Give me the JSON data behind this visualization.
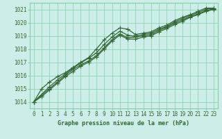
{
  "xlabel": "Graphe pression niveau de la mer (hPa)",
  "bg_color": "#cceee8",
  "plot_bg_color": "#cceee8",
  "grid_color": "#88ccaa",
  "line_color": "#336633",
  "marker_color": "#336633",
  "ylim": [
    1013.5,
    1021.5
  ],
  "xlim": [
    -0.5,
    23.5
  ],
  "yticks": [
    1014,
    1015,
    1016,
    1017,
    1018,
    1019,
    1020,
    1021
  ],
  "xticks": [
    0,
    1,
    2,
    3,
    4,
    5,
    6,
    7,
    8,
    9,
    10,
    11,
    12,
    13,
    14,
    15,
    16,
    17,
    18,
    19,
    20,
    21,
    22,
    23
  ],
  "line1_x": [
    0,
    1,
    2,
    3,
    4,
    5,
    6,
    7,
    8,
    9,
    10,
    11,
    12,
    13,
    14,
    15,
    16,
    17,
    18,
    19,
    20,
    21,
    22,
    23
  ],
  "line1_y": [
    1014.0,
    1015.0,
    1015.5,
    1015.9,
    1016.2,
    1016.6,
    1017.0,
    1017.35,
    1018.0,
    1018.7,
    1019.2,
    1019.6,
    1019.5,
    1019.1,
    1019.2,
    1019.3,
    1019.6,
    1019.8,
    1020.15,
    1020.4,
    1020.6,
    1020.85,
    1021.1,
    1021.1
  ],
  "line2_x": [
    0,
    1,
    2,
    3,
    4,
    5,
    6,
    7,
    8,
    9,
    10,
    11,
    12,
    13,
    14,
    15,
    16,
    17,
    18,
    19,
    20,
    21,
    22,
    23
  ],
  "line2_y": [
    1014.0,
    1014.5,
    1015.0,
    1015.5,
    1016.0,
    1016.45,
    1016.8,
    1017.1,
    1017.5,
    1018.1,
    1018.7,
    1019.15,
    1018.85,
    1018.9,
    1019.0,
    1019.1,
    1019.4,
    1019.65,
    1019.95,
    1020.2,
    1020.45,
    1020.65,
    1020.9,
    1021.05
  ],
  "line3_x": [
    0,
    1,
    2,
    3,
    4,
    5,
    6,
    7,
    8,
    9,
    10,
    11,
    12,
    13,
    14,
    15,
    16,
    17,
    18,
    19,
    20,
    21,
    22,
    23
  ],
  "line3_y": [
    1014.0,
    1014.4,
    1014.9,
    1015.4,
    1015.9,
    1016.3,
    1016.7,
    1017.0,
    1017.4,
    1018.0,
    1018.6,
    1019.05,
    1018.75,
    1018.75,
    1018.9,
    1019.0,
    1019.3,
    1019.55,
    1019.85,
    1020.1,
    1020.4,
    1020.6,
    1020.85,
    1021.0
  ],
  "line4_x": [
    0,
    2,
    3,
    4,
    5,
    6,
    7,
    8,
    9,
    10,
    11,
    12,
    13,
    14,
    15,
    16,
    17,
    18,
    19,
    20,
    21,
    22,
    23
  ],
  "line4_y": [
    1014.0,
    1015.15,
    1015.65,
    1016.1,
    1016.55,
    1016.95,
    1017.3,
    1017.7,
    1018.35,
    1018.9,
    1019.35,
    1019.05,
    1018.95,
    1019.1,
    1019.2,
    1019.5,
    1019.7,
    1020.05,
    1020.3,
    1020.55,
    1020.75,
    1021.0,
    1021.1
  ],
  "marker_size": 2.5,
  "linewidth": 0.9,
  "tick_fontsize": 5.5,
  "label_fontsize": 6.0
}
